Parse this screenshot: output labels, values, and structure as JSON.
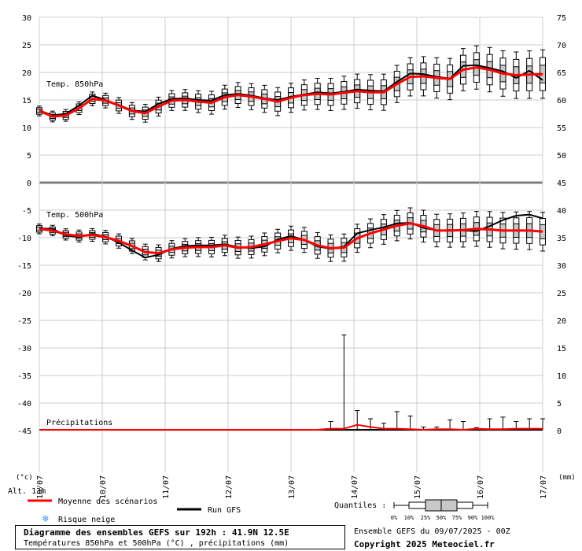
{
  "chart_data": {
    "type": "boxplot",
    "x_labels": [
      "10/07",
      "10/07",
      "11/07",
      "12/07",
      "13/07",
      "14/07",
      "15/07",
      "16/07",
      "17/07"
    ],
    "left_axis_ticks": [
      30,
      25,
      20,
      15,
      10,
      5,
      0,
      -5,
      -10,
      -15,
      -20,
      -25,
      -30,
      -35,
      -40,
      -45
    ],
    "right_axis_ticks": [
      75,
      70,
      65,
      60,
      55,
      50,
      45,
      40,
      35,
      30,
      25,
      20,
      15,
      10,
      5,
      0
    ],
    "left_unit": "(°c)",
    "right_unit": "(mm)",
    "altitude_label": "Alt. 13m",
    "panels": {
      "t850": {
        "label": "Temp. 850hPa",
        "mean": [
          13.0,
          12.0,
          12.2,
          13.5,
          15.2,
          14.9,
          14.0,
          13.0,
          12.6,
          13.8,
          14.9,
          15.0,
          14.7,
          14.5,
          15.5,
          15.9,
          15.6,
          15.2,
          14.7,
          15.4,
          15.9,
          16.1,
          16.0,
          16.3,
          16.6,
          16.4,
          16.4,
          17.9,
          19.2,
          19.3,
          19.0,
          18.8,
          20.5,
          20.9,
          20.5,
          19.8,
          19.5,
          19.6,
          19.7
        ],
        "gfs": [
          13.1,
          12.2,
          12.5,
          14.0,
          15.8,
          15.0,
          14.1,
          13.1,
          12.9,
          14.3,
          15.2,
          15.3,
          15.0,
          14.9,
          15.9,
          16.1,
          15.8,
          15.3,
          15.0,
          15.6,
          16.0,
          16.4,
          16.2,
          16.5,
          16.9,
          16.7,
          16.6,
          18.3,
          19.8,
          19.7,
          19.2,
          18.9,
          21.2,
          21.3,
          20.8,
          20.2,
          19.0,
          20.3,
          18.6
        ]
      },
      "t500": {
        "label": "Temp. 500hPa",
        "mean": [
          -8.4,
          -8.7,
          -9.4,
          -9.7,
          -9.5,
          -9.9,
          -10.6,
          -11.5,
          -12.6,
          -12.8,
          -12.1,
          -11.8,
          -11.7,
          -11.7,
          -11.4,
          -11.8,
          -11.7,
          -11.2,
          -10.6,
          -10.1,
          -10.4,
          -11.4,
          -11.9,
          -11.8,
          -10.1,
          -9.2,
          -8.5,
          -7.8,
          -7.4,
          -7.9,
          -8.7,
          -8.7,
          -8.6,
          -8.4,
          -8.5,
          -8.7,
          -8.7,
          -8.7,
          -8.9
        ],
        "gfs": [
          -8.3,
          -8.4,
          -9.6,
          -9.9,
          -9.3,
          -9.8,
          -10.9,
          -12.3,
          -13.6,
          -13.1,
          -12.0,
          -11.5,
          -11.4,
          -11.4,
          -11.2,
          -11.7,
          -11.9,
          -11.6,
          -10.3,
          -9.7,
          -10.4,
          -11.6,
          -12.0,
          -11.6,
          -9.2,
          -8.6,
          -8.1,
          -7.4,
          -7.3,
          -8.2,
          -8.7,
          -8.6,
          -8.7,
          -8.8,
          -7.9,
          -6.8,
          -6.0,
          -5.8,
          -6.5
        ]
      },
      "precip": {
        "label": "Précipitations",
        "mean": [
          0,
          0,
          0,
          0,
          0,
          0,
          0,
          0,
          0,
          0,
          0,
          0,
          0,
          0,
          0,
          0,
          0,
          0,
          0,
          0,
          0,
          0,
          0.2,
          0.2,
          0.9,
          0.5,
          0.2,
          0.2,
          0.1,
          0.0,
          0.1,
          0.1,
          0.0,
          0.2,
          0.1,
          0.1,
          0.2,
          0.2,
          0.2
        ],
        "max": [
          0,
          0,
          0,
          0,
          0,
          0,
          0,
          0,
          0,
          0,
          0,
          0,
          0,
          0,
          0,
          0,
          0,
          0,
          0,
          0,
          0,
          0,
          1.5,
          17.2,
          3.5,
          2.0,
          1.2,
          3.3,
          2.5,
          0.5,
          0.5,
          1.8,
          1.5,
          0.4,
          2.0,
          2.3,
          1.5,
          2.0,
          2.0
        ]
      }
    }
  },
  "legend": {
    "mean_label": "Moyenne des scénarios",
    "gfs_label": "Run GFS",
    "snow_label": "Risque neige",
    "quantiles_label": "Quantiles :",
    "quantile_ticks": [
      "0%",
      "10%",
      "25%",
      "50%",
      "75%",
      "90%",
      "100%"
    ],
    "mean_color": "#ff0000",
    "gfs_color": "#000000",
    "snow_color": "#3399ff"
  },
  "footer": {
    "title": "Diagramme des ensembles GEFS sur 192h : 41.9N 12.5E",
    "subtitle": "Températures 850hPa et 500hPa (°C) , précipitations (mm)",
    "ensemble_date": "Ensemble GEFS du 09/07/2025 - 00Z",
    "copyright": "Copyright 2025 Meteociel.fr"
  }
}
